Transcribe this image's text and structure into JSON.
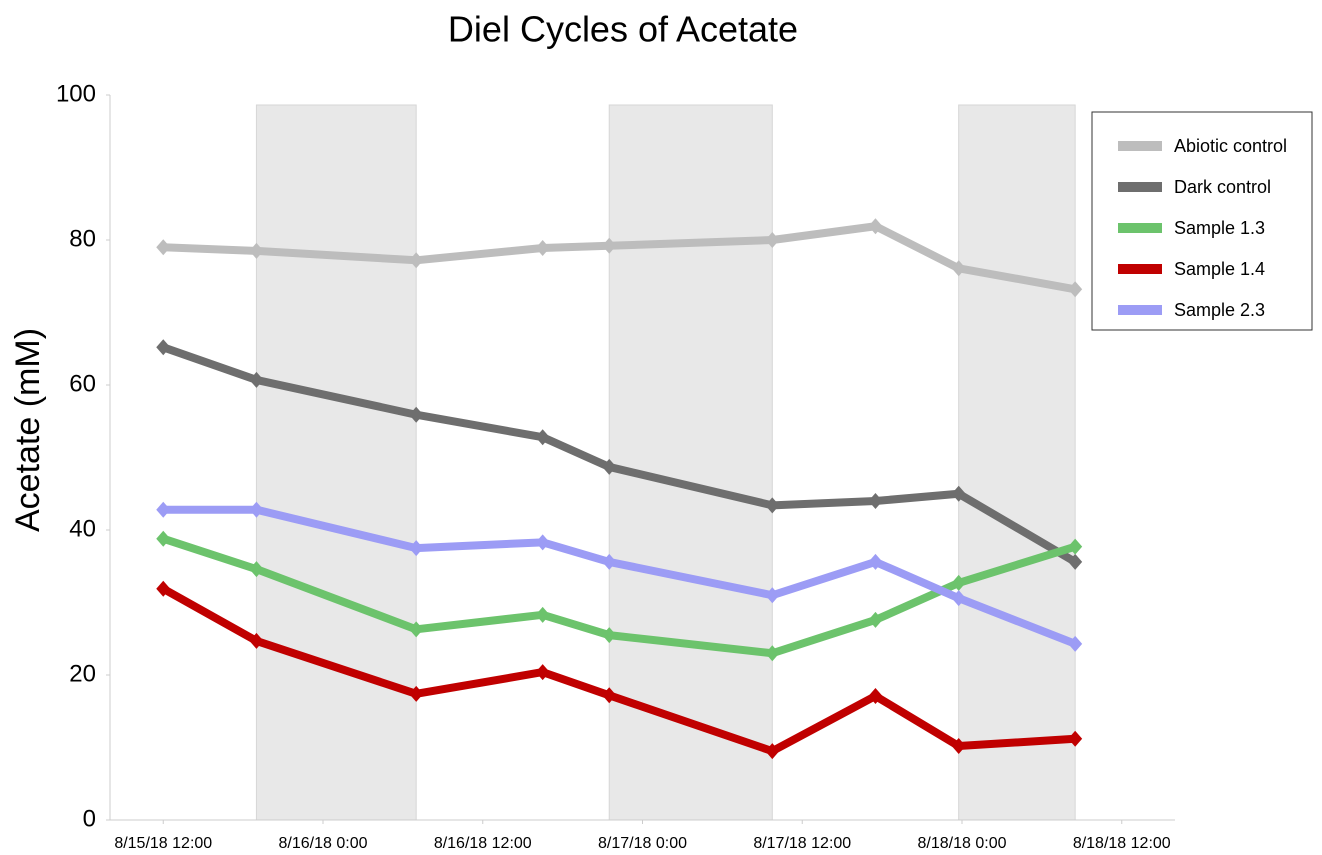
{
  "chart_data": {
    "type": "line",
    "title": "Diel Cycles of Acetate",
    "y_label": "Acetate (mM)",
    "x": [
      "2018-08-15T12:00",
      "2018-08-15T19:00",
      "2018-08-16T07:00",
      "2018-08-16T16:30",
      "2018-08-16T21:30",
      "2018-08-17T09:45",
      "2018-08-17T17:30",
      "2018-08-17T23:45",
      "2018-08-18T08:30"
    ],
    "series": [
      {
        "name": "Abiotic control",
        "color": "#bdbdbd",
        "values": [
          79.0,
          78.5,
          77.2,
          78.9,
          79.2,
          80.0,
          81.9,
          76.1,
          73.2
        ]
      },
      {
        "name": "Dark control",
        "color": "#6e6e6e",
        "values": [
          65.2,
          60.7,
          55.9,
          52.8,
          48.7,
          43.4,
          44.0,
          45.0,
          35.6
        ]
      },
      {
        "name": "Sample 1.3",
        "color": "#6cc36c",
        "values": [
          38.8,
          34.6,
          26.3,
          28.3,
          25.5,
          23.0,
          27.6,
          32.7,
          37.7
        ]
      },
      {
        "name": "Sample 1.4",
        "color": "#c00000",
        "values": [
          31.9,
          24.7,
          17.4,
          20.4,
          17.2,
          9.5,
          17.1,
          10.2,
          11.2
        ]
      },
      {
        "name": "Sample 2.3",
        "color": "#9c9cf5",
        "values": [
          42.8,
          42.8,
          37.5,
          38.3,
          35.6,
          31.0,
          35.6,
          30.6,
          24.3
        ]
      }
    ],
    "shaded_regions": [
      [
        "2018-08-15T19:00",
        "2018-08-16T07:00"
      ],
      [
        "2018-08-16T21:30",
        "2018-08-17T09:45"
      ],
      [
        "2018-08-17T23:45",
        "2018-08-18T08:30"
      ]
    ],
    "xlim": [
      "2018-08-15T08:00",
      "2018-08-18T16:00"
    ],
    "xticks": [
      {
        "value": "2018-08-15T12:00",
        "label": "8/15/18 12:00"
      },
      {
        "value": "2018-08-16T00:00",
        "label": "8/16/18 0:00"
      },
      {
        "value": "2018-08-16T12:00",
        "label": "8/16/18 12:00"
      },
      {
        "value": "2018-08-17T00:00",
        "label": "8/17/18 0:00"
      },
      {
        "value": "2018-08-17T12:00",
        "label": "8/17/18 12:00"
      },
      {
        "value": "2018-08-18T00:00",
        "label": "8/18/18 0:00"
      },
      {
        "value": "2018-08-18T12:00",
        "label": "8/18/18 12:00"
      }
    ],
    "ylim": [
      0,
      100
    ],
    "yticks": [
      0,
      20,
      40,
      60,
      80,
      100
    ],
    "grid": false,
    "legend": "upper right"
  }
}
